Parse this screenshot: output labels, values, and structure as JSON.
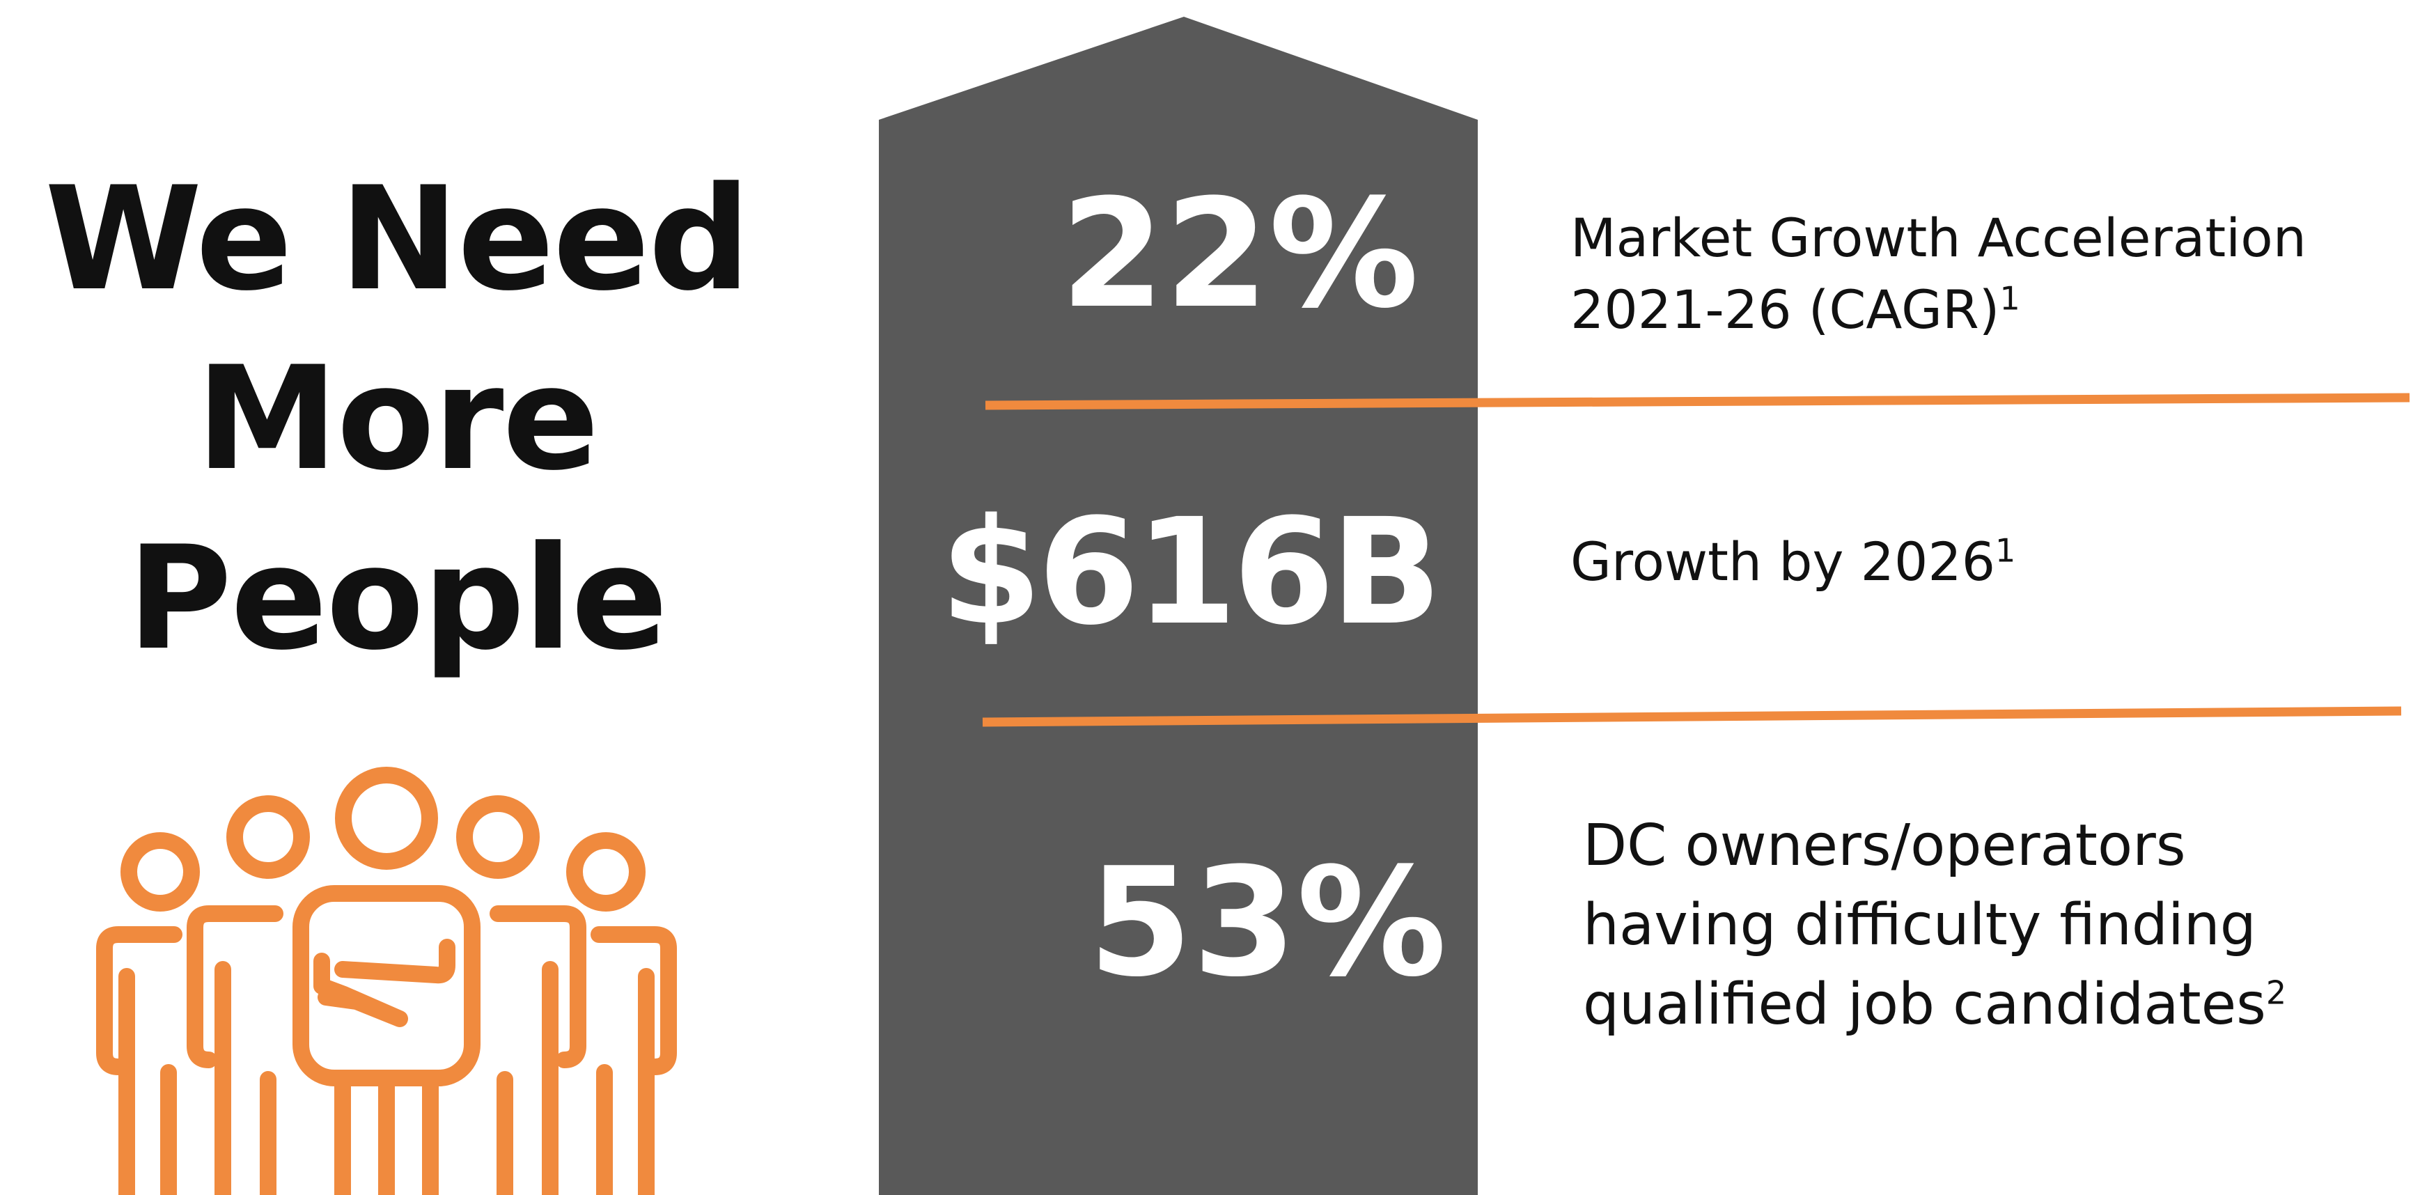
{
  "headline": {
    "lines": [
      "We Need",
      "More",
      "People"
    ]
  },
  "stats": [
    {
      "value": "22%",
      "description_lines": [
        "Market Growth Acceleration",
        "2021-26 (CAGR)"
      ],
      "footnote": "1"
    },
    {
      "value": "$616B",
      "description_lines": [
        "Growth by 2026"
      ],
      "footnote": "1"
    },
    {
      "value": "53%",
      "description_lines": [
        "DC owners/operators",
        "having difficulty finding",
        "qualified job candidates"
      ],
      "footnote": "2"
    }
  ],
  "colors": {
    "accent": "#F08A3E",
    "arrow": "#595959",
    "text": "#111111",
    "background": "#FFFFFF"
  },
  "icons": [
    "people-group-icon"
  ]
}
